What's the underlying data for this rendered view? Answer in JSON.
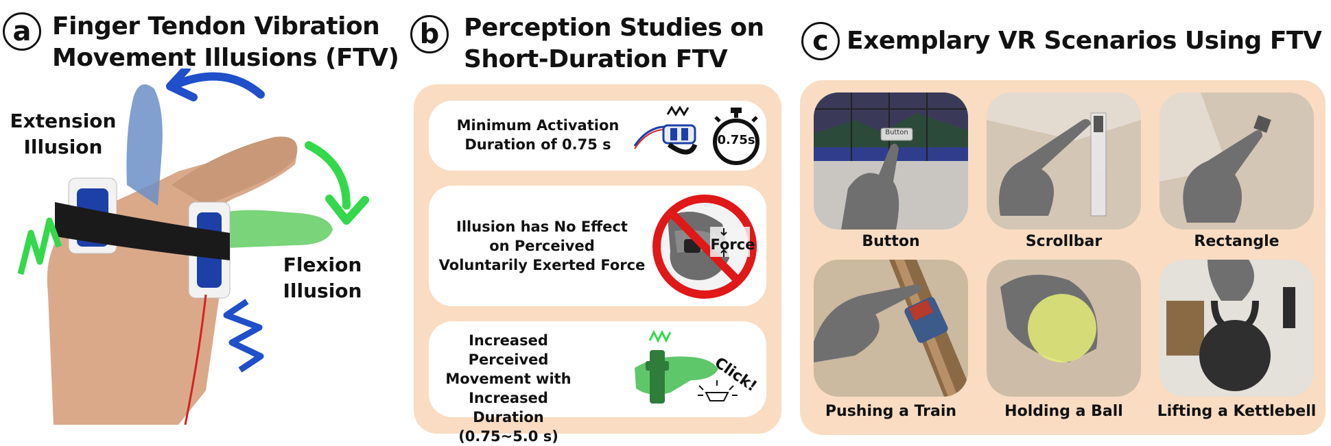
{
  "panel_a": {
    "badge": "a",
    "title_line1": "Finger Tendon Vibration",
    "title_line2": "Movement Illusions (FTV)",
    "extension_line1": "Extension",
    "extension_line2": "Illusion",
    "flexion_line1": "Flexion",
    "flexion_line2": "Illusion"
  },
  "panel_b": {
    "badge": "b",
    "title_line1": "Perception Studies on",
    "title_line2": "Short-Duration FTV",
    "cards": [
      {
        "lines": [
          "Minimum Activation",
          "Duration of 0.75 s"
        ],
        "icon_text": "0.75s"
      },
      {
        "lines": [
          "Illusion has No Effect",
          "on Perceived",
          "Voluntarily Exerted Force"
        ],
        "icon_text": "Force"
      },
      {
        "lines": [
          "Increased Perceived",
          "Movement with",
          "Increased Duration",
          "(0.75~5.0 s)"
        ],
        "icon_text": "Click!"
      }
    ]
  },
  "panel_c": {
    "badge": "c",
    "title": "Exemplary VR Scenarios Using FTV",
    "button_screen_label": "Button",
    "scenarios": [
      {
        "label": "Button"
      },
      {
        "label": "Scrollbar"
      },
      {
        "label": "Rectangle"
      },
      {
        "label": "Pushing a Train"
      },
      {
        "label": "Holding a Ball"
      },
      {
        "label": "Lifting a Kettlebell"
      }
    ]
  },
  "colors": {
    "panel_bg": "#f9dcc2",
    "card_bg": "#ffffff",
    "extension_arrow": "#1f4fc9",
    "flexion_arrow": "#33d94a",
    "prohibit_red": "#e01818"
  }
}
